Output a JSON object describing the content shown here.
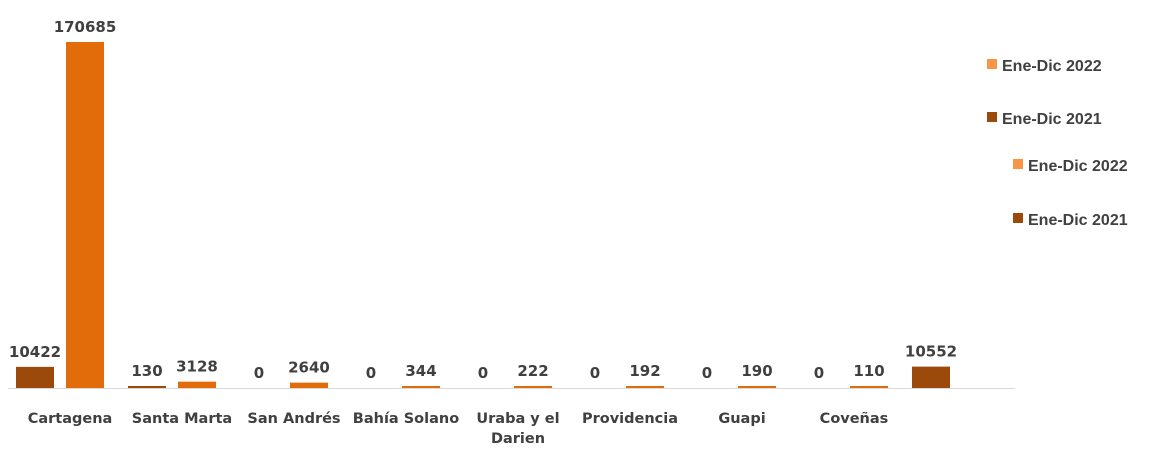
{
  "chart_data": {
    "type": "bar",
    "title": "",
    "xlabel": "",
    "ylabel": "",
    "ylim": [
      0,
      170685
    ],
    "grid": false,
    "legend_position": "right",
    "categories": [
      "Cartagena",
      "Santa Marta",
      "San Andrés",
      "Bahía Solano",
      "Uraba y el Darien",
      "Providencia",
      "Guapi",
      "Coveñas",
      ""
    ],
    "category_label_lines": [
      [
        "Cartagena"
      ],
      [
        "Santa Marta"
      ],
      [
        "San Andrés"
      ],
      [
        "Bahía Solano"
      ],
      [
        "Uraba y el",
        "Darien"
      ],
      [
        "Providencia"
      ],
      [
        "Guapi"
      ],
      [
        "Coveñas"
      ],
      []
    ],
    "series": [
      {
        "name": "Ene-Dic 2021",
        "color": "#9C4A0C",
        "values": [
          10422,
          130,
          0,
          0,
          0,
          0,
          0,
          0,
          10552
        ]
      },
      {
        "name": "Ene-Dic 2022",
        "color": "#E26B0A",
        "values": [
          170685,
          3128,
          2640,
          344,
          222,
          192,
          190,
          110,
          null
        ]
      }
    ],
    "legend": [
      {
        "name": "Ene-Dic 2022",
        "color": "#F79646"
      },
      {
        "name": "Ene-Dic 2021",
        "color": "#9C4A0C"
      },
      {
        "name": "Ene-Dic 2022",
        "color": "#F79646"
      },
      {
        "name": "Ene-Dic 2021",
        "color": "#9C4A0C"
      }
    ]
  }
}
